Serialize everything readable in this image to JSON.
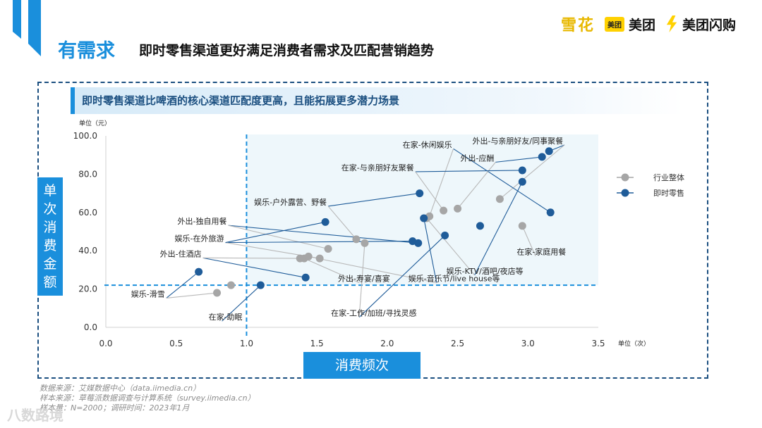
{
  "header": {
    "keyword": "有需求",
    "title": "即时零售渠道更好满足消费者需求及匹配营销趋势",
    "brands": [
      "雪花",
      "美团",
      "美团",
      "美团闪购"
    ]
  },
  "panel": {
    "subtitle": "即时零售渠道比啤酒的核心渠道匹配度更高，且能拓展更多潜力场景",
    "y_axis_title": [
      "单",
      "次",
      "消",
      "费",
      "金",
      "额"
    ],
    "x_axis_title": "消费频次"
  },
  "chart_data": {
    "type": "scatter",
    "title": "即时零售渠道比啤酒的核心渠道匹配度更高，且能拓展更多潜力场景",
    "xlabel": "消费频次",
    "ylabel": "单次消费金额",
    "x_unit": "单位（次）",
    "y_unit": "单位（元）",
    "xlim": [
      0,
      3.5
    ],
    "ylim": [
      0,
      100
    ],
    "x_ticks": [
      "0.0",
      "0.5",
      "1.0",
      "1.5",
      "2.0",
      "2.5",
      "3.0",
      "3.5"
    ],
    "y_ticks": [
      "0.0",
      "20.0",
      "40.0",
      "60.0",
      "80.0",
      "100.0"
    ],
    "reference_lines": {
      "x": 1.0,
      "y": 22
    },
    "legend": [
      "行业整体",
      "即时零售"
    ],
    "legend_position": "right",
    "colors": {
      "industry": "#a6a6a6",
      "instant": "#1f5c99",
      "accent": "#1a8fdc"
    },
    "series": [
      {
        "name": "行业整体",
        "points": [
          {
            "scene": "外出-与亲朋好友/同事聚餐",
            "x": 2.8,
            "y": 67
          },
          {
            "scene": "在家-休闲娱乐",
            "x": 2.3,
            "y": 58
          },
          {
            "scene": "外出-应酬",
            "x": 2.5,
            "y": 62
          },
          {
            "scene": "在家-与亲朋好友聚餐",
            "x": 2.4,
            "y": 61
          },
          {
            "scene": "娱乐-户外露营、野餐",
            "x": 1.78,
            "y": 46
          },
          {
            "scene": "外出-独自用餐",
            "x": 1.58,
            "y": 41
          },
          {
            "scene": "娱乐-在外旅游",
            "x": 1.52,
            "y": 36
          },
          {
            "scene": "外出-住酒店",
            "x": 1.38,
            "y": 36
          },
          {
            "scene": "在家-家庭用餐",
            "x": 2.96,
            "y": 53
          },
          {
            "scene": "外出-寿宴/喜宴",
            "x": 1.41,
            "y": 36
          },
          {
            "scene": "娱乐-音乐节/live house等",
            "x": 1.44,
            "y": 37
          },
          {
            "scene": "娱乐-KTV/酒吧/夜店等",
            "x": 2.28,
            "y": 57
          },
          {
            "scene": "在家-工作/加班/寻找灵感",
            "x": 1.84,
            "y": 44
          },
          {
            "scene": "娱乐-滑雪",
            "x": 0.79,
            "y": 18
          },
          {
            "scene": "在家-助眠",
            "x": 0.89,
            "y": 22
          }
        ]
      },
      {
        "name": "即时零售",
        "points": [
          {
            "scene": "外出-与亲朋好友/同事聚餐",
            "x": 3.15,
            "y": 92
          },
          {
            "scene": "外出-应酬",
            "x": 3.1,
            "y": 89
          },
          {
            "scene": "在家-与亲朋好友聚餐",
            "x": 2.96,
            "y": 82
          },
          {
            "scene": "在家-休闲娱乐",
            "x": 3.16,
            "y": 60
          },
          {
            "scene": "娱乐-户外露营、野餐",
            "x": 2.23,
            "y": 70
          },
          {
            "scene": "外出-独自用餐",
            "x": 2.22,
            "y": 44
          },
          {
            "scene": "娱乐-在外旅游",
            "x": 2.18,
            "y": 45
          },
          {
            "scene": "外出-寿宴/喜宴",
            "x": 1.56,
            "y": 55
          },
          {
            "scene": "在家-家庭用餐",
            "x": 2.66,
            "y": 53
          },
          {
            "scene": "娱乐-KTV/酒吧/夜店等",
            "x": 2.96,
            "y": 76
          },
          {
            "scene": "娱乐-音乐节/live house等",
            "x": 2.26,
            "y": 57
          },
          {
            "scene": "在家-工作/加班/寻找灵感",
            "x": 2.41,
            "y": 48
          },
          {
            "scene": "外出-住酒店",
            "x": 1.42,
            "y": 26
          },
          {
            "scene": "娱乐-滑雪",
            "x": 0.66,
            "y": 29
          },
          {
            "scene": "在家-助眠",
            "x": 1.1,
            "y": 22
          }
        ]
      }
    ],
    "annotations": [
      {
        "text": "外出-与亲朋好友/同事聚餐",
        "x": 3.25,
        "y": 96,
        "anchor": "end",
        "targets": [
          {
            "x": 3.15,
            "y": 92
          },
          {
            "x": 2.8,
            "y": 67
          }
        ]
      },
      {
        "text": "在家-休闲娱乐",
        "x": 2.46,
        "y": 94,
        "anchor": "end",
        "targets": [
          {
            "x": 3.16,
            "y": 60
          },
          {
            "x": 2.3,
            "y": 58
          }
        ]
      },
      {
        "text": "外出-应酬",
        "x": 2.76,
        "y": 87,
        "anchor": "end",
        "targets": [
          {
            "x": 3.1,
            "y": 89
          },
          {
            "x": 2.5,
            "y": 62
          }
        ]
      },
      {
        "text": "在家-与亲朋好友聚餐",
        "x": 2.19,
        "y": 82,
        "anchor": "end",
        "targets": [
          {
            "x": 2.96,
            "y": 82
          },
          {
            "x": 2.4,
            "y": 61
          }
        ]
      },
      {
        "text": "娱乐-户外露营、野餐",
        "x": 1.57,
        "y": 64,
        "anchor": "end",
        "targets": [
          {
            "x": 2.23,
            "y": 70
          },
          {
            "x": 1.78,
            "y": 46
          }
        ]
      },
      {
        "text": "外出-独自用餐",
        "x": 0.86,
        "y": 54,
        "anchor": "end",
        "targets": [
          {
            "x": 2.22,
            "y": 44
          },
          {
            "x": 1.58,
            "y": 41
          }
        ]
      },
      {
        "text": "娱乐-在外旅游",
        "x": 0.84,
        "y": 45,
        "anchor": "end",
        "targets": [
          {
            "x": 2.18,
            "y": 45
          },
          {
            "x": 1.52,
            "y": 36
          },
          {
            "x": 1.56,
            "y": 55
          }
        ]
      },
      {
        "text": "外出-住酒店",
        "x": 0.68,
        "y": 37,
        "anchor": "end",
        "targets": [
          {
            "x": 1.42,
            "y": 26
          },
          {
            "x": 1.38,
            "y": 36
          }
        ]
      },
      {
        "text": "在家-家庭用餐",
        "x": 2.92,
        "y": 38,
        "anchor": "start",
        "targets": [
          {
            "x": 2.96,
            "y": 53
          }
        ]
      },
      {
        "text": "外出-寿宴/喜宴",
        "x": 1.65,
        "y": 24,
        "anchor": "start",
        "targets": [
          {
            "x": 1.41,
            "y": 36
          }
        ]
      },
      {
        "text": "娱乐-音乐节/live house等",
        "x": 2.15,
        "y": 24,
        "anchor": "start",
        "targets": [
          {
            "x": 2.26,
            "y": 57
          },
          {
            "x": 1.44,
            "y": 37
          }
        ]
      },
      {
        "text": "娱乐-KTV/酒吧/夜店等",
        "x": 2.42,
        "y": 28,
        "anchor": "start",
        "targets": [
          {
            "x": 2.96,
            "y": 76
          },
          {
            "x": 2.28,
            "y": 57
          }
        ]
      },
      {
        "text": "在家-工作/加班/寻找灵感",
        "x": 1.6,
        "y": 6,
        "anchor": "start",
        "targets": [
          {
            "x": 2.41,
            "y": 48
          },
          {
            "x": 1.84,
            "y": 44
          }
        ]
      },
      {
        "text": "娱乐-滑雪",
        "x": 0.42,
        "y": 16,
        "anchor": "end",
        "targets": [
          {
            "x": 0.66,
            "y": 29
          },
          {
            "x": 0.79,
            "y": 18
          }
        ]
      },
      {
        "text": "在家-助眠",
        "x": 0.73,
        "y": 4,
        "anchor": "start",
        "targets": [
          {
            "x": 1.1,
            "y": 22
          }
        ]
      }
    ]
  },
  "footnotes": [
    "数据来源：艾媒数据中心（data.iimedia.cn）",
    "样本来源：草莓派数据调查与计算系统（survey.iimedia.cn）",
    "样本量：N=2000；调研时间：2023年1月"
  ],
  "watermark": "八数路境"
}
